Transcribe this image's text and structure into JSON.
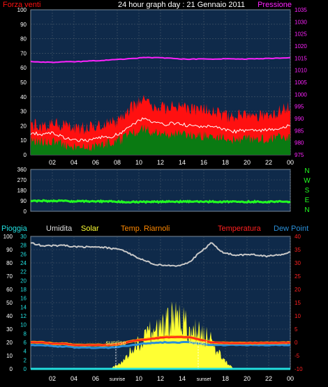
{
  "title": "24 hour graph day : 21 Gennaio 2011",
  "colors": {
    "background": "#000000",
    "plot_bg": "#0f2a4a",
    "grid": "#4a5a6a",
    "wind": "#ff1010",
    "wind_gust": "#ffffff",
    "wind_avg": "#0a7a12",
    "pressure": "#ff22ff",
    "direction": "#22ff22",
    "humidity": "#c8c8c8",
    "solar": "#ffff33",
    "heat_index": "#ff8800",
    "temperature": "#ff2020",
    "dew_point": "#2a8fd8",
    "rain": "#22e0e0"
  },
  "chart_data": [
    {
      "type": "line",
      "left_label": "Forza venti",
      "right_label": "Pressione",
      "x_ticks": [
        "02",
        "04",
        "06",
        "08",
        "10",
        "12",
        "14",
        "16",
        "18",
        "20",
        "22",
        "00"
      ],
      "y_left_ticks": [
        "0",
        "10",
        "20",
        "30",
        "40",
        "50",
        "60",
        "70",
        "80",
        "90",
        "100"
      ],
      "y_right_ticks": [
        "975",
        "980",
        "985",
        "990",
        "995",
        "1000",
        "1005",
        "1010",
        "1015",
        "1020",
        "1025",
        "1030",
        "1035"
      ],
      "ylim_left": [
        0,
        100
      ],
      "ylim_right": [
        975,
        1035
      ],
      "grid": true,
      "series": [
        {
          "name": "Forza venti",
          "axis": "left",
          "values": [
            21,
            20,
            22,
            20,
            19,
            18,
            21,
            22,
            24,
            33,
            38,
            33,
            32,
            34,
            31,
            31,
            31,
            27,
            26,
            28,
            27,
            27,
            30,
            33
          ]
        },
        {
          "name": "",
          "axis": "left",
          "values": [
            15,
            14,
            15,
            12,
            10,
            10,
            12,
            12,
            15,
            21,
            25,
            22,
            21,
            22,
            20,
            19,
            20,
            18,
            16,
            17,
            17,
            17,
            18,
            21
          ]
        },
        {
          "name": "",
          "axis": "left",
          "values": [
            9,
            9,
            9,
            7,
            5,
            5,
            7,
            8,
            10,
            15,
            18,
            15,
            14,
            15,
            13,
            13,
            13,
            12,
            10,
            11,
            11,
            11,
            12,
            13
          ]
        },
        {
          "name": "Pressione",
          "axis": "right",
          "values": [
            1013.5,
            1013.3,
            1013.3,
            1013.6,
            1013.5,
            1013.7,
            1014,
            1014.2,
            1014.5,
            1014.8,
            1015.2,
            1015.2,
            1015,
            1014.7,
            1014.6,
            1014.6,
            1014.6,
            1014.7,
            1014.6,
            1014.6,
            1014.7,
            1014.9,
            1015,
            1015.1
          ]
        }
      ]
    },
    {
      "type": "line",
      "right_labels": [
        "N",
        "W",
        "S",
        "E",
        "N"
      ],
      "y_ticks": [
        "0",
        "90",
        "180",
        "270",
        "360"
      ],
      "ylim": [
        0,
        360
      ],
      "grid": true,
      "series": [
        {
          "name": "",
          "values": [
            90,
            90,
            88,
            88,
            86,
            86,
            85,
            84,
            82,
            80,
            80,
            81,
            82,
            83,
            83,
            82,
            82,
            82,
            81,
            81,
            82,
            82,
            83,
            83
          ]
        }
      ]
    },
    {
      "type": "line",
      "legend": [
        "Pioggia",
        "Umidita",
        "Solar",
        "Temp. Riarnoli",
        "Temperatura",
        "Dew Point"
      ],
      "x_ticks": [
        "02",
        "04",
        "06",
        "sunrise",
        "10",
        "12",
        "14",
        "sunset",
        "18",
        "20",
        "22",
        "00"
      ],
      "annotations": [
        "sunrise",
        "sunset"
      ],
      "y_left_ticks": [
        "0",
        "10",
        "20",
        "30",
        "40",
        "50",
        "60",
        "70",
        "80",
        "90",
        "100"
      ],
      "y_left2_ticks": [
        "0",
        "2",
        "4",
        "6",
        "8",
        "10",
        "12",
        "14",
        "16",
        "18",
        "20",
        "22",
        "24",
        "26",
        "28",
        "30"
      ],
      "y_right_ticks": [
        "-10",
        "-5",
        "0",
        "5",
        "10",
        "15",
        "20",
        "25",
        "30",
        "35",
        "40"
      ],
      "ylim_left": [
        0,
        100
      ],
      "ylim_right": [
        -10,
        40
      ],
      "grid": true,
      "series": [
        {
          "name": "Umidita",
          "axis": "left",
          "values": [
            95,
            93,
            93,
            93,
            92,
            92,
            92,
            91,
            90,
            86,
            82,
            79,
            78,
            78,
            80,
            88,
            95,
            88,
            86,
            86,
            86,
            85,
            86,
            88
          ]
        },
        {
          "name": "Temperatura",
          "axis": "right",
          "values": [
            0,
            0,
            -0.5,
            -0.5,
            -1,
            -1,
            -1,
            -1,
            -0.5,
            0.5,
            1,
            1.5,
            2,
            2,
            2,
            1,
            0,
            -0.2,
            -0.3,
            -0.3,
            -0.3,
            -0.2,
            -0.2,
            -0.1
          ]
        },
        {
          "name": "Temp. Riarnoli",
          "axis": "right",
          "values": [
            0,
            0,
            -0.5,
            -0.5,
            -1,
            -1,
            -1,
            -1,
            -0.5,
            0.5,
            1,
            1.5,
            2,
            2,
            2,
            1,
            0,
            -0.2,
            -0.3,
            -0.3,
            -0.3,
            -0.2,
            -0.2,
            -0.1
          ]
        },
        {
          "name": "Dew Point",
          "axis": "right",
          "values": [
            -1,
            -1,
            -1.5,
            -1.5,
            -2,
            -2,
            -2,
            -2,
            -1.5,
            -1,
            -0.5,
            -0.2,
            0,
            0,
            0,
            -0.5,
            -1,
            -1,
            -1,
            -1,
            -1,
            -1,
            -1,
            -1
          ]
        },
        {
          "name": "Solar",
          "axis": "left",
          "values": [
            0,
            0,
            0,
            0,
            0,
            0,
            0,
            0,
            4,
            12,
            20,
            24,
            28,
            35,
            26,
            22,
            18,
            6,
            0,
            0,
            0,
            0,
            0,
            0
          ]
        },
        {
          "name": "Pioggia",
          "axis": "left",
          "values": [
            0,
            0,
            0,
            0,
            0,
            0,
            0,
            0,
            0,
            0,
            0,
            0,
            0,
            0,
            0,
            0,
            0,
            0,
            0,
            0,
            0,
            0,
            0,
            0
          ]
        }
      ]
    }
  ]
}
